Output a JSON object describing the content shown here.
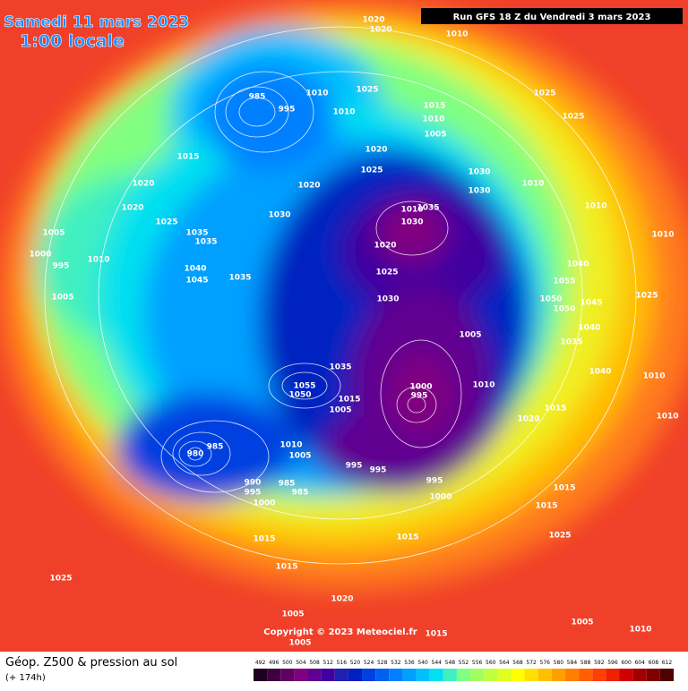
{
  "header": {
    "valid_date": "Samedi 11 mars 2023",
    "local_time": "1:00 locale",
    "run": "Run GFS 18 Z du Vendredi 3 mars 2023"
  },
  "footer": {
    "copyright": "Copyright © 2023 Meteociel.fr",
    "product": "Géop. Z500 & pression au sol",
    "lead": "(+ 174h)"
  },
  "isobar_labels": [
    "1020",
    "1020",
    "1010",
    "985",
    "1010",
    "995",
    "1025",
    "1010",
    "1015",
    "1010",
    "1005",
    "1025",
    "1025",
    "1015",
    "1020",
    "1025",
    "1030",
    "1030",
    "1010",
    "1020",
    "1020",
    "1020",
    "1010",
    "1035",
    "1010",
    "1025",
    "1030",
    "1030",
    "1005",
    "1035",
    "1035",
    "1020",
    "1010",
    "1000",
    "1010",
    "995",
    "1040",
    "1040",
    "1045",
    "1025",
    "1055",
    "1035",
    "1005",
    "1030",
    "1050",
    "1025",
    "1050",
    "1045",
    "1005",
    "1040",
    "1035",
    "1035",
    "1040",
    "1010",
    "1055",
    "1010",
    "1000",
    "995",
    "1015",
    "1050",
    "1005",
    "1015",
    "1010",
    "1020",
    "980",
    "985",
    "1010",
    "1005",
    "995",
    "995",
    "995",
    "990",
    "995",
    "985",
    "985",
    "1000",
    "1000",
    "1015",
    "1015",
    "1015",
    "1015",
    "1025",
    "1015",
    "1025",
    "1020",
    "1005",
    "1005",
    "1010",
    "1015",
    "1005"
  ],
  "color_scale": [
    {
      "label": "492",
      "color": "#200020"
    },
    {
      "label": "496",
      "color": "#400040"
    },
    {
      "label": "500",
      "color": "#600060"
    },
    {
      "label": "504",
      "color": "#800080"
    },
    {
      "label": "508",
      "color": "#600090"
    },
    {
      "label": "512",
      "color": "#4000a0"
    },
    {
      "label": "516",
      "color": "#2020b0"
    },
    {
      "label": "520",
      "color": "#0020c0"
    },
    {
      "label": "524",
      "color": "#0040e0"
    },
    {
      "label": "528",
      "color": "#0060f0"
    },
    {
      "label": "532",
      "color": "#0080ff"
    },
    {
      "label": "536",
      "color": "#00a0ff"
    },
    {
      "label": "540",
      "color": "#00c0ff"
    },
    {
      "label": "544",
      "color": "#00e0f0"
    },
    {
      "label": "548",
      "color": "#40f0c0"
    },
    {
      "label": "552",
      "color": "#80ff80"
    },
    {
      "label": "556",
      "color": "#a0ff60"
    },
    {
      "label": "560",
      "color": "#c0ff40"
    },
    {
      "label": "564",
      "color": "#e0ff20"
    },
    {
      "label": "568",
      "color": "#ffff00"
    },
    {
      "label": "572",
      "color": "#ffe000"
    },
    {
      "label": "576",
      "color": "#ffc000"
    },
    {
      "label": "580",
      "color": "#ffa000"
    },
    {
      "label": "584",
      "color": "#ff8000"
    },
    {
      "label": "588",
      "color": "#ff6000"
    },
    {
      "label": "592",
      "color": "#ff4000"
    },
    {
      "label": "596",
      "color": "#f02000"
    },
    {
      "label": "600",
      "color": "#d00000"
    },
    {
      "label": "604",
      "color": "#a00000"
    },
    {
      "label": "608",
      "color": "#800000"
    },
    {
      "label": "612",
      "color": "#500000"
    }
  ]
}
